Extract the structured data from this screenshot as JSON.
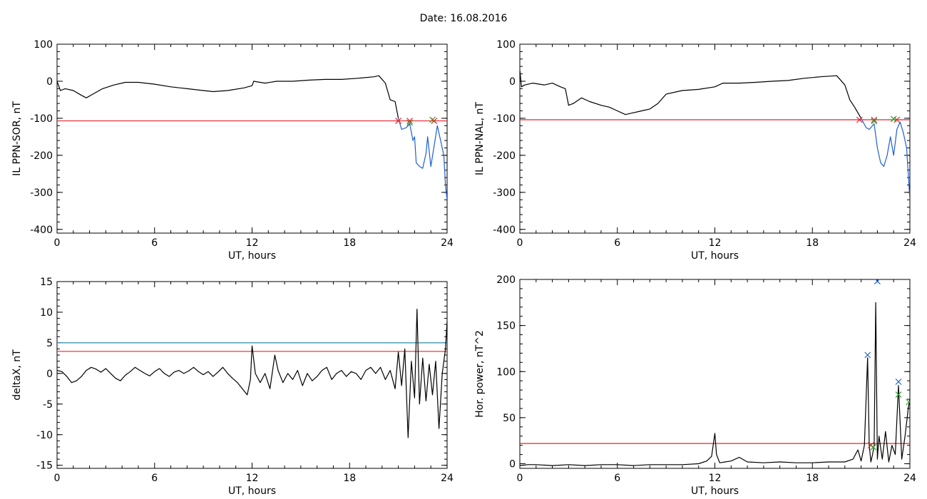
{
  "figure": {
    "title": "Date:  16.08.2016"
  },
  "colors": {
    "axis": "#000000",
    "data": "#000000",
    "threshold_red": "#e8232a",
    "threshold_teal": "#2a8ea8",
    "highlight_blue": "#1f5fcf",
    "marker_red": "#e8232a",
    "marker_green": "#2ca02c",
    "marker_blue": "#1f5fcf"
  },
  "chart_data": [
    {
      "type": "line",
      "xlabel": "UT, hours",
      "ylabel": "IL PPN-SOR, nT",
      "xlim": [
        0,
        24
      ],
      "ylim": [
        -410,
        100
      ],
      "xticks": [
        0,
        6,
        12,
        18,
        24
      ],
      "yticks": [
        100,
        0,
        -100,
        -200,
        -300,
        -400
      ],
      "series": [
        {
          "color": "black",
          "x": [
            0,
            0.2,
            0.5,
            1.0,
            1.5,
            1.8,
            2.2,
            2.8,
            3.5,
            4.2,
            5.0,
            6.0,
            7.0,
            8.0,
            9.0,
            9.6,
            10.5,
            11.5,
            12.0,
            12.1,
            12.8,
            13.5,
            14.5,
            15.5,
            16.5,
            17.5,
            18.5,
            19.5,
            19.8,
            20.2,
            20.5,
            20.8,
            21.0
          ],
          "y": [
            0,
            -25,
            -20,
            -25,
            -38,
            -45,
            -35,
            -20,
            -10,
            -3,
            -3,
            -8,
            -15,
            -20,
            -25,
            -28,
            -25,
            -18,
            -12,
            0,
            -5,
            0,
            0,
            3,
            5,
            5,
            8,
            12,
            15,
            -5,
            -50,
            -55,
            -100
          ]
        },
        {
          "color": "blue",
          "x": [
            21.0,
            21.2,
            21.5,
            21.7,
            21.9,
            22.0,
            22.1,
            22.3,
            22.5,
            22.7,
            22.8,
            23.0,
            23.2,
            23.4,
            23.6,
            23.8,
            23.9,
            24.0
          ],
          "y": [
            -100,
            -130,
            -125,
            -115,
            -160,
            -150,
            -220,
            -230,
            -235,
            -195,
            -150,
            -230,
            -175,
            -120,
            -160,
            -200,
            -280,
            -320
          ]
        }
      ],
      "threshold_lines": [
        {
          "color": "red",
          "y": -107
        }
      ],
      "markers": [
        {
          "x": 21.0,
          "y": -107,
          "color": "red"
        },
        {
          "x": 21.7,
          "y": -107,
          "color": "red"
        },
        {
          "x": 21.7,
          "y": -112,
          "color": "green"
        },
        {
          "x": 23.2,
          "y": -107,
          "color": "red"
        },
        {
          "x": 23.1,
          "y": -104,
          "color": "green"
        }
      ]
    },
    {
      "type": "line",
      "xlabel": "UT, hours",
      "ylabel": "IL PPN-NAL, nT",
      "xlim": [
        0,
        24
      ],
      "ylim": [
        -410,
        100
      ],
      "xticks": [
        0,
        6,
        12,
        18,
        24
      ],
      "yticks": [
        100,
        0,
        -100,
        -200,
        -300,
        -400
      ],
      "series": [
        {
          "color": "black",
          "x": [
            0,
            0.1,
            0.3,
            0.8,
            1.5,
            2.0,
            2.5,
            2.8,
            3.0,
            3.3,
            3.8,
            4.3,
            5.0,
            5.5,
            6.0,
            6.5,
            7.0,
            7.5,
            8.0,
            8.5,
            9.0,
            9.5,
            10.0,
            11.0,
            12.0,
            12.5,
            13.5,
            14.5,
            15.5,
            16.5,
            17.5,
            18.5,
            19.5,
            20.0,
            20.3,
            20.6,
            21.0
          ],
          "y": [
            30,
            -15,
            -10,
            -5,
            -10,
            -5,
            -15,
            -20,
            -65,
            -60,
            -45,
            -55,
            -65,
            -70,
            -80,
            -90,
            -85,
            -80,
            -75,
            -60,
            -35,
            -30,
            -25,
            -22,
            -15,
            -5,
            -5,
            -3,
            0,
            2,
            8,
            12,
            15,
            -10,
            -50,
            -70,
            -100
          ]
        },
        {
          "color": "blue",
          "x": [
            21.0,
            21.3,
            21.5,
            21.8,
            22.0,
            22.2,
            22.4,
            22.6,
            22.8,
            23.0,
            23.2,
            23.4,
            23.6,
            23.8,
            23.9,
            24.0
          ],
          "y": [
            -100,
            -125,
            -130,
            -115,
            -180,
            -220,
            -230,
            -200,
            -150,
            -200,
            -130,
            -110,
            -140,
            -180,
            -250,
            -320
          ]
        }
      ],
      "threshold_lines": [
        {
          "color": "red",
          "y": -104
        }
      ],
      "markers": [
        {
          "x": 20.9,
          "y": -104,
          "color": "red"
        },
        {
          "x": 21.8,
          "y": -104,
          "color": "red"
        },
        {
          "x": 21.8,
          "y": -108,
          "color": "green"
        },
        {
          "x": 23.2,
          "y": -104,
          "color": "red"
        },
        {
          "x": 23.0,
          "y": -102,
          "color": "green"
        }
      ]
    },
    {
      "type": "line",
      "xlabel": "UT, hours",
      "ylabel": "deltaX, nT",
      "xlim": [
        0,
        24
      ],
      "ylim": [
        -15.5,
        15
      ],
      "xticks": [
        0,
        6,
        12,
        18,
        24
      ],
      "yticks": [
        15,
        10,
        5,
        0,
        -5,
        -10,
        -15
      ],
      "series": [
        {
          "color": "black",
          "x": [
            0,
            0.3,
            0.6,
            0.9,
            1.2,
            1.5,
            1.8,
            2.1,
            2.4,
            2.7,
            3.0,
            3.3,
            3.6,
            3.9,
            4.2,
            4.5,
            4.8,
            5.1,
            5.4,
            5.7,
            6.0,
            6.3,
            6.6,
            6.9,
            7.2,
            7.5,
            7.8,
            8.1,
            8.4,
            8.7,
            9.0,
            9.3,
            9.6,
            9.9,
            10.2,
            10.5,
            10.8,
            11.1,
            11.4,
            11.7,
            11.9,
            12.0,
            12.2,
            12.5,
            12.8,
            13.1,
            13.4,
            13.6,
            13.9,
            14.2,
            14.5,
            14.8,
            15.1,
            15.4,
            15.7,
            16.0,
            16.3,
            16.6,
            16.9,
            17.2,
            17.5,
            17.8,
            18.1,
            18.4,
            18.7,
            19.0,
            19.3,
            19.6,
            19.9,
            20.2,
            20.5,
            20.8,
            21.0,
            21.2,
            21.4,
            21.6,
            21.8,
            22.0,
            22.15,
            22.3,
            22.5,
            22.7,
            22.9,
            23.1,
            23.3,
            23.5,
            23.7,
            23.9,
            24.0
          ],
          "y": [
            0.5,
            0.3,
            -0.5,
            -1.5,
            -1.2,
            -0.5,
            0.5,
            1.0,
            0.7,
            0.2,
            0.8,
            0.0,
            -0.8,
            -1.2,
            -0.3,
            0.3,
            1.0,
            0.5,
            0.0,
            -0.4,
            0.3,
            0.8,
            0.0,
            -0.5,
            0.2,
            0.5,
            0.0,
            0.4,
            1.0,
            0.3,
            -0.2,
            0.3,
            -0.5,
            0.2,
            1.0,
            0.0,
            -0.8,
            -1.5,
            -2.5,
            -3.5,
            -1.0,
            4.5,
            0.0,
            -1.5,
            0.0,
            -2.5,
            3.0,
            0.5,
            -1.5,
            0.0,
            -1.0,
            0.5,
            -2.0,
            0.0,
            -1.2,
            -0.5,
            0.5,
            1.0,
            -1.0,
            0.0,
            0.5,
            -0.5,
            0.3,
            0.0,
            -1.0,
            0.5,
            1.0,
            0.0,
            1.0,
            -1.0,
            0.5,
            -2.5,
            3.5,
            -2.0,
            4.0,
            -10.5,
            2.0,
            -4.0,
            10.5,
            -5.0,
            2.5,
            -4.5,
            1.5,
            -3.5,
            2.0,
            -9.0,
            0.0,
            4.0,
            8.5
          ]
        }
      ],
      "threshold_lines": [
        {
          "color": "red",
          "y": 3.6
        },
        {
          "color": "teal",
          "y": 5.0
        }
      ],
      "markers": []
    },
    {
      "type": "line",
      "xlabel": "UT, hours",
      "ylabel": "Hor. power, nT^2",
      "xlim": [
        0,
        24
      ],
      "ylim": [
        -5,
        200
      ],
      "xticks": [
        0,
        6,
        12,
        18,
        24
      ],
      "yticks": [
        200,
        150,
        100,
        50,
        0
      ],
      "series": [
        {
          "color": "black",
          "x": [
            0,
            0.5,
            1.0,
            2.0,
            3.0,
            4.0,
            5.0,
            6.0,
            7.0,
            8.0,
            9.0,
            10.0,
            11.0,
            11.5,
            11.8,
            12.0,
            12.1,
            12.3,
            13.0,
            13.5,
            14.0,
            15.0,
            16.0,
            17.0,
            18.0,
            19.0,
            20.0,
            20.5,
            20.8,
            21.0,
            21.2,
            21.4,
            21.5,
            21.6,
            21.7,
            21.8,
            21.9,
            22.0,
            22.1,
            22.3,
            22.5,
            22.7,
            22.9,
            23.1,
            23.3,
            23.5,
            23.7,
            23.9,
            24.0
          ],
          "y": [
            -2,
            -1,
            -1,
            -2,
            -1,
            -2,
            -1,
            -1,
            -2,
            -1,
            -1,
            -1,
            0,
            3,
            8,
            33,
            10,
            1,
            3,
            7,
            2,
            1,
            2,
            1,
            1,
            2,
            2,
            5,
            15,
            3,
            20,
            115,
            20,
            2,
            10,
            20,
            175,
            5,
            30,
            5,
            35,
            2,
            20,
            10,
            85,
            5,
            30,
            60,
            70
          ]
        }
      ],
      "threshold_lines": [
        {
          "color": "red",
          "y": 22
        }
      ],
      "markers": [
        {
          "x": 21.4,
          "y": 118,
          "color": "blue"
        },
        {
          "x": 22.0,
          "y": 198,
          "color": "blue"
        },
        {
          "x": 23.3,
          "y": 89,
          "color": "blue"
        },
        {
          "x": 21.6,
          "y": 20,
          "color": "red"
        },
        {
          "x": 21.75,
          "y": 18,
          "color": "green"
        },
        {
          "x": 23.3,
          "y": 75,
          "color": "green"
        },
        {
          "x": 23.95,
          "y": 67,
          "color": "green"
        }
      ]
    }
  ]
}
